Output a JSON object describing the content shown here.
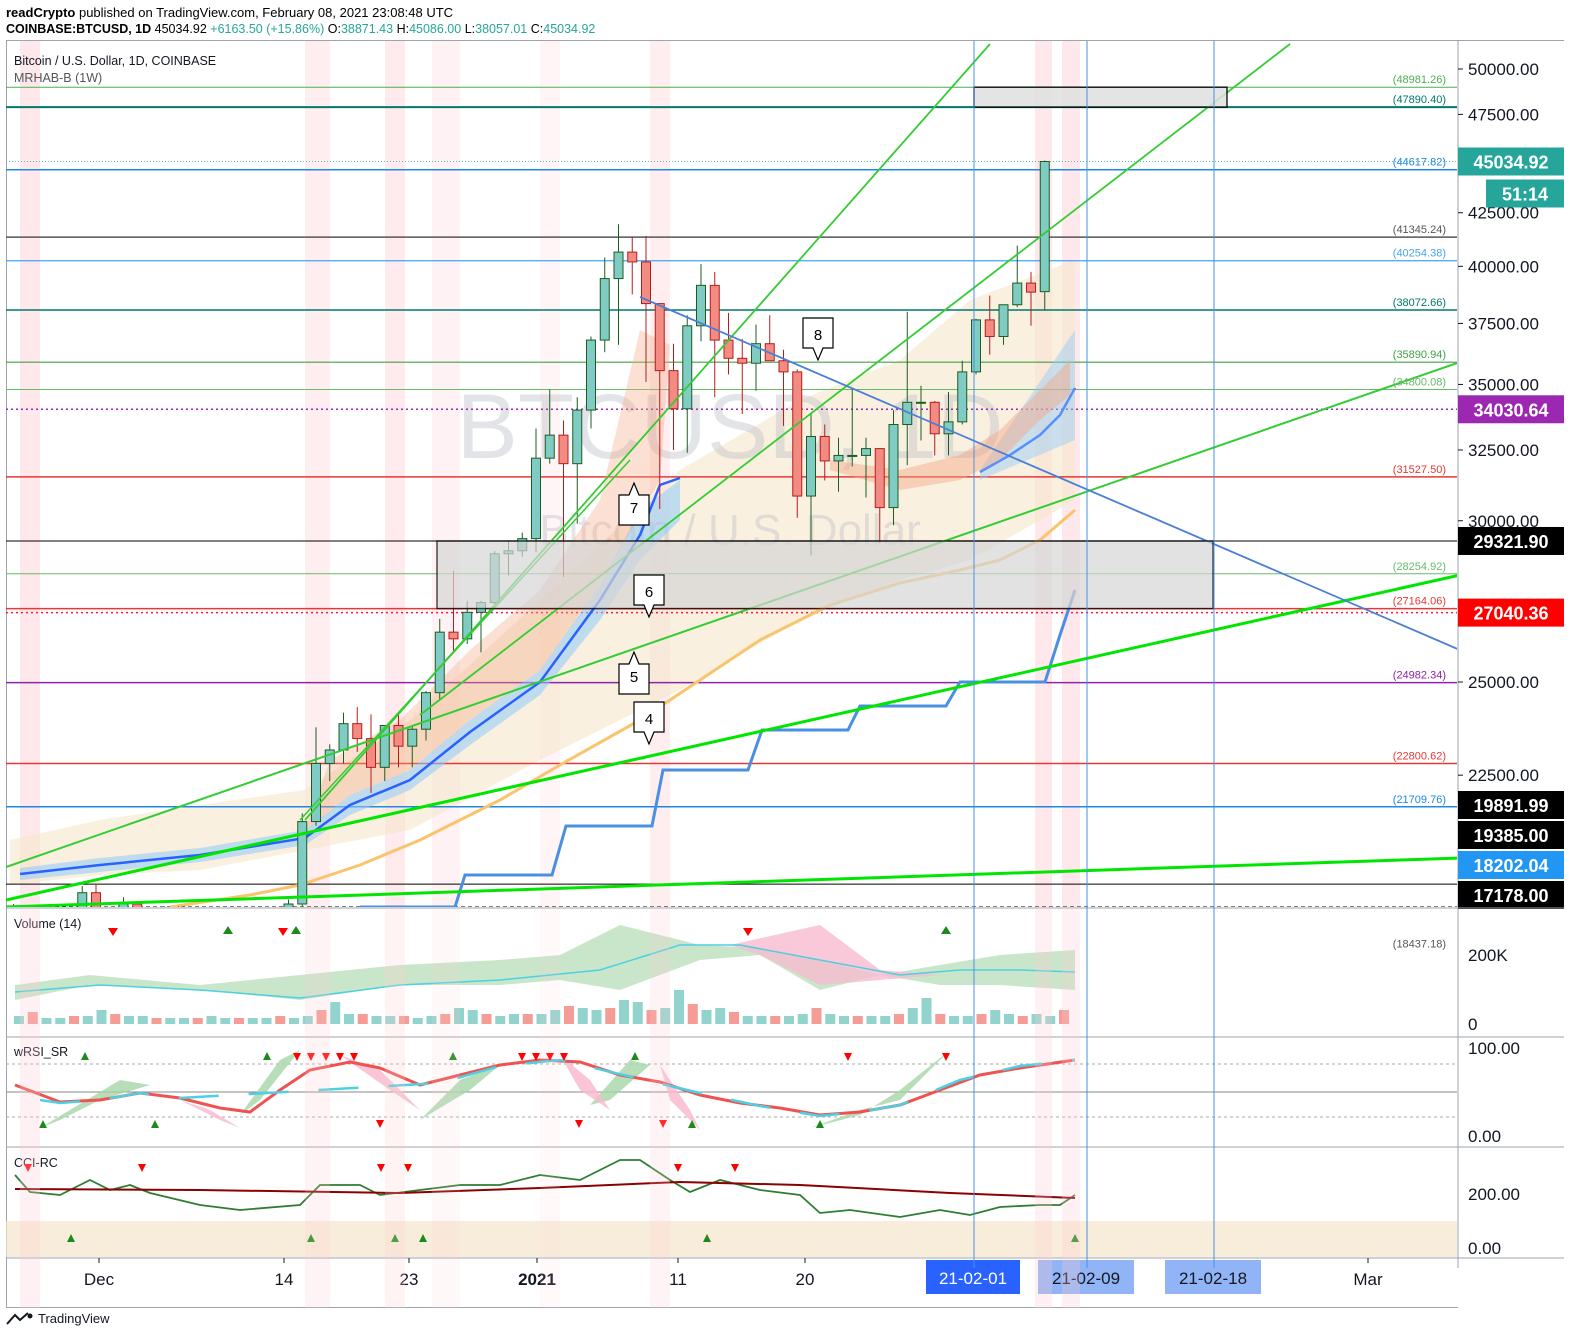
{
  "header": {
    "publisher_line": "readCrypto published on TradingView.com, February 08, 2021 23:08:48 UTC",
    "publisher_name": "readCrypto",
    "publisher_rest": " published on TradingView.com, February 08, 2021 23:08:48 UTC",
    "symbol": "COINBASE:BTCUSD, 1D",
    "last": "45034.92",
    "change": "+6163.50 (+15.86%)",
    "o_label": "O:",
    "o": "38871.43",
    "h_label": "H:",
    "h": "45086.00",
    "l_label": "L:",
    "l": "38057.01",
    "c_label": "C:",
    "c": "45034.92"
  },
  "main_pane": {
    "title": "Bitcoin / U.S. Dollar, 1D, COINBASE",
    "indicator": "MRHAB-B (1W)",
    "watermark_symbol": "BTCUSD, 1D",
    "watermark_name": "Bitcoin / U.S. Dollar"
  },
  "price_axis": {
    "ticks": [
      "50000.00",
      "47500.00",
      "42500.00",
      "40000.00",
      "37500.00",
      "35000.00",
      "32500.00",
      "30000.00",
      "25000.00",
      "22500.00"
    ],
    "badges": [
      {
        "value": "45034.92",
        "color": "#26a69a"
      },
      {
        "value": "51:14",
        "color": "#26a69a"
      },
      {
        "value": "34030.64",
        "color": "#9c27b0"
      },
      {
        "value": "29321.90",
        "color": "#000000"
      },
      {
        "value": "27040.36",
        "color": "#ff0000"
      },
      {
        "value": "19891.99",
        "color": "#000000"
      },
      {
        "value": "19385.00",
        "color": "#000000"
      },
      {
        "value": "18202.04",
        "color": "#2196f3"
      },
      {
        "value": "17178.00",
        "color": "#000000"
      }
    ],
    "level_labels": [
      "(48981.26)",
      "(47890.40)",
      "(44617.82)",
      "(41345.24)",
      "(40254.38)",
      "(38072.66)",
      "(35890.94)",
      "(34800.08)",
      "(31527.50)",
      "(28254.92)",
      "(27164.06)",
      "(24982.34)",
      "(22800.62)",
      "(21709.76)",
      "(18437.18)"
    ]
  },
  "time_axis": {
    "labels": [
      "Dec",
      "14",
      "23",
      "2021",
      "11",
      "20",
      "Mar"
    ],
    "highlighted": [
      "21-02-01",
      "21-02-09",
      "21-02-18"
    ]
  },
  "wave_labels": [
    "8",
    "7",
    "6",
    "5",
    "4"
  ],
  "volume_pane": {
    "title": "Volume (14)",
    "ticks": [
      "200K",
      "0"
    ]
  },
  "rsi_pane": {
    "title": "wRSI_SR",
    "ticks": [
      "100.00",
      "0.00"
    ]
  },
  "cci_pane": {
    "title": "CCI-RC",
    "ticks": [
      "200.00",
      "0.00"
    ]
  },
  "footer": {
    "brand": "TradingView"
  },
  "colors": {
    "up": "#26a69a",
    "down": "#ef5350",
    "trend": "#00e600",
    "blue": "#2962ff"
  },
  "chart_data": {
    "type": "candlestick",
    "symbol": "COINBASE:BTCUSD",
    "interval": "1D",
    "y_scale": "log",
    "y_range": [
      17178.0,
      50500.0
    ],
    "x_range": [
      "2020-11-23",
      "2021-03-02"
    ],
    "horizontal_levels": [
      48981.26,
      47890.4,
      44617.82,
      41345.24,
      40254.38,
      38072.66,
      35890.94,
      34800.08,
      34030.64,
      31527.5,
      29321.9,
      28254.92,
      27164.06,
      27040.36,
      24982.34,
      22800.62,
      21709.76,
      19891.99,
      19385.0,
      18437.18,
      18202.04,
      17178.0
    ],
    "last_candle": {
      "date": "2021-02-08",
      "open": 38871.43,
      "high": 45086.0,
      "low": 38057.01,
      "close": 45034.92
    },
    "candles": [
      [
        "2020-11-24",
        19150,
        19400,
        18550,
        18800
      ],
      [
        "2020-11-25",
        18800,
        19450,
        16950,
        17200
      ],
      [
        "2020-11-26",
        17200,
        17350,
        16300,
        16850
      ],
      [
        "2020-11-27",
        16850,
        17200,
        16500,
        17100
      ],
      [
        "2020-11-28",
        17100,
        17850,
        17000,
        17650
      ],
      [
        "2020-11-29",
        17650,
        18250,
        17500,
        18150
      ],
      [
        "2020-11-30",
        18150,
        19850,
        18000,
        19700
      ],
      [
        "2020-12-01",
        19700,
        19900,
        18200,
        18800
      ],
      [
        "2020-12-02",
        18800,
        19300,
        18300,
        19200
      ],
      [
        "2020-12-03",
        19200,
        19600,
        18900,
        19450
      ],
      [
        "2020-12-04",
        19450,
        19500,
        18550,
        18650
      ],
      [
        "2020-12-05",
        18650,
        19200,
        18500,
        19150
      ],
      [
        "2020-12-06",
        19150,
        19400,
        18900,
        19350
      ],
      [
        "2020-12-07",
        19350,
        19400,
        18900,
        19150
      ],
      [
        "2020-12-08",
        19150,
        19250,
        18250,
        18350
      ],
      [
        "2020-12-09",
        18350,
        18650,
        17650,
        18550
      ],
      [
        "2020-12-10",
        18550,
        18600,
        17950,
        18250
      ],
      [
        "2020-12-11",
        18250,
        18300,
        17600,
        18050
      ],
      [
        "2020-12-12",
        18050,
        18950,
        18000,
        18800
      ],
      [
        "2020-12-13",
        18800,
        19400,
        18700,
        19150
      ],
      [
        "2020-12-14",
        19150,
        19350,
        19000,
        19250
      ],
      [
        "2020-12-15",
        19250,
        19550,
        19050,
        19450
      ],
      [
        "2020-12-16",
        19450,
        21550,
        19300,
        21350
      ],
      [
        "2020-12-17",
        21350,
        23750,
        21250,
        22800
      ],
      [
        "2020-12-18",
        22800,
        23300,
        22350,
        23150
      ],
      [
        "2020-12-19",
        23150,
        24150,
        22800,
        23850
      ],
      [
        "2020-12-20",
        23850,
        24300,
        23100,
        23450
      ],
      [
        "2020-12-21",
        23450,
        24100,
        22050,
        22700
      ],
      [
        "2020-12-22",
        22700,
        23800,
        22350,
        23800
      ],
      [
        "2020-12-23",
        23800,
        24100,
        22700,
        23250
      ],
      [
        "2020-12-24",
        23250,
        23800,
        22700,
        23700
      ],
      [
        "2020-12-25",
        23700,
        24750,
        23400,
        24700
      ],
      [
        "2020-12-26",
        24700,
        26850,
        24500,
        26450
      ],
      [
        "2020-12-27",
        26450,
        28350,
        25850,
        26250
      ],
      [
        "2020-12-28",
        26250,
        27400,
        26100,
        27050
      ],
      [
        "2020-12-29",
        27050,
        27400,
        25850,
        27350
      ],
      [
        "2020-12-30",
        27350,
        28999,
        27300,
        28900
      ],
      [
        "2020-12-31",
        28900,
        29300,
        28200,
        29000
      ],
      [
        "2021-01-01",
        29000,
        29600,
        28800,
        29400
      ],
      [
        "2021-01-02",
        29400,
        33300,
        28950,
        32200
      ],
      [
        "2021-01-03",
        32200,
        34800,
        32000,
        33050
      ],
      [
        "2021-01-04",
        33050,
        33600,
        28150,
        32000
      ],
      [
        "2021-01-05",
        32000,
        34500,
        29900,
        34000
      ],
      [
        "2021-01-06",
        34000,
        36950,
        33300,
        36800
      ],
      [
        "2021-01-07",
        36800,
        40400,
        36300,
        39450
      ],
      [
        "2021-01-08",
        39450,
        41950,
        36600,
        40650
      ],
      [
        "2021-01-09",
        40650,
        41350,
        38750,
        40200
      ],
      [
        "2021-01-10",
        40200,
        41400,
        35100,
        38350
      ],
      [
        "2021-01-11",
        38350,
        38350,
        30400,
        35550
      ],
      [
        "2021-01-12",
        35550,
        36650,
        32500,
        34050
      ],
      [
        "2021-01-13",
        34050,
        37850,
        32400,
        37400
      ],
      [
        "2021-01-14",
        37400,
        40100,
        36750,
        39150
      ],
      [
        "2021-01-15",
        39150,
        39750,
        34500,
        36800
      ],
      [
        "2021-01-16",
        36800,
        37950,
        35400,
        36050
      ],
      [
        "2021-01-17",
        36050,
        36850,
        33850,
        35850
      ],
      [
        "2021-01-18",
        35850,
        37450,
        34750,
        36650
      ],
      [
        "2021-01-19",
        36650,
        37850,
        35950,
        35950
      ],
      [
        "2021-01-20",
        35950,
        36400,
        33400,
        35500
      ],
      [
        "2021-01-21",
        35500,
        35600,
        30100,
        30850
      ],
      [
        "2021-01-22",
        30850,
        33850,
        28850,
        33000
      ],
      [
        "2021-01-23",
        33000,
        33450,
        31400,
        32100
      ],
      [
        "2021-01-24",
        32100,
        32950,
        31000,
        32300
      ],
      [
        "2021-01-25",
        32300,
        34850,
        31900,
        32300
      ],
      [
        "2021-01-26",
        32300,
        32950,
        30800,
        32550
      ],
      [
        "2021-01-27",
        32550,
        32550,
        29250,
        30450
      ],
      [
        "2021-01-28",
        30450,
        34000,
        29850,
        33450
      ],
      [
        "2021-01-29",
        33450,
        38000,
        31950,
        34300
      ],
      [
        "2021-01-30",
        34300,
        34950,
        32850,
        34300
      ],
      [
        "2021-01-31",
        34300,
        34350,
        32300,
        33100
      ],
      [
        "2021-02-01",
        33100,
        34700,
        32300,
        33550
      ],
      [
        "2021-02-02",
        33550,
        35950,
        33450,
        35500
      ],
      [
        "2021-02-03",
        35500,
        37700,
        35400,
        37650
      ],
      [
        "2021-02-04",
        37650,
        38700,
        36200,
        36950
      ],
      [
        "2021-02-05",
        36950,
        38300,
        36600,
        38300
      ],
      [
        "2021-02-06",
        38300,
        40950,
        38200,
        39250
      ],
      [
        "2021-02-07",
        39250,
        39750,
        37400,
        38850
      ],
      [
        "2021-02-08",
        38871.43,
        45086.0,
        38057.01,
        45034.92
      ]
    ]
  }
}
